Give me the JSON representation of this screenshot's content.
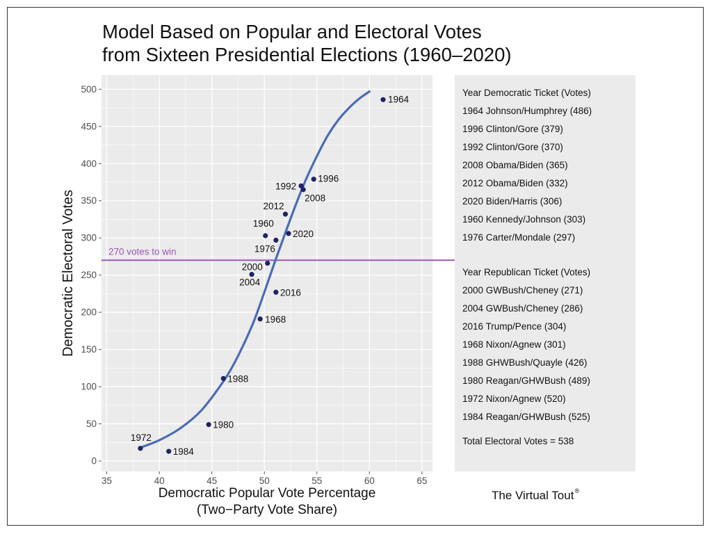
{
  "title_lines": [
    "Model Based on Popular and Electoral Votes",
    "from Sixteen Presidential Elections (1960–2020)"
  ],
  "colors": {
    "panel_bg": "#ebebeb",
    "grid": "#ffffff",
    "point": "#1f2266",
    "curve": "#4a6cb5",
    "threshold": "#9b59b6"
  },
  "chart_data": {
    "type": "scatter",
    "xlabel": "Democratic Popular Vote Percentage",
    "xlabel2": "(Two−Party Vote Share)",
    "ylabel": "Democratic Electoral Votes",
    "xlim": [
      34.5,
      66
    ],
    "ylim": [
      -14,
      519
    ],
    "xticks": [
      35,
      40,
      45,
      50,
      55,
      60,
      65
    ],
    "yticks": [
      0,
      50,
      100,
      150,
      200,
      250,
      300,
      350,
      400,
      450,
      500
    ],
    "grid": true,
    "points": [
      {
        "label": "1960",
        "x": 50.1,
        "y": 303
      },
      {
        "label": "1964",
        "x": 61.3,
        "y": 486
      },
      {
        "label": "1968",
        "x": 49.6,
        "y": 191
      },
      {
        "label": "1972",
        "x": 38.2,
        "y": 17
      },
      {
        "label": "1976",
        "x": 51.1,
        "y": 297
      },
      {
        "label": "1980",
        "x": 44.7,
        "y": 49
      },
      {
        "label": "1984",
        "x": 40.9,
        "y": 13
      },
      {
        "label": "1988",
        "x": 46.1,
        "y": 111
      },
      {
        "label": "1992",
        "x": 53.5,
        "y": 370
      },
      {
        "label": "1996",
        "x": 54.7,
        "y": 379
      },
      {
        "label": "2000",
        "x": 50.3,
        "y": 266
      },
      {
        "label": "2004",
        "x": 48.8,
        "y": 251
      },
      {
        "label": "2008",
        "x": 53.7,
        "y": 365
      },
      {
        "label": "2012",
        "x": 52.0,
        "y": 332
      },
      {
        "label": "2016",
        "x": 51.1,
        "y": 227
      },
      {
        "label": "2020",
        "x": 52.3,
        "y": 306
      }
    ],
    "fit_curve": [
      [
        38.2,
        18
      ],
      [
        40,
        28
      ],
      [
        42,
        44
      ],
      [
        44,
        68
      ],
      [
        46,
        105
      ],
      [
        47,
        128
      ],
      [
        48,
        156
      ],
      [
        49,
        188
      ],
      [
        50,
        227
      ],
      [
        51,
        268
      ],
      [
        52,
        307
      ],
      [
        53,
        345
      ],
      [
        54,
        380
      ],
      [
        55,
        410
      ],
      [
        56,
        437
      ],
      [
        57,
        458
      ],
      [
        58,
        474
      ],
      [
        59,
        487
      ],
      [
        60,
        497
      ]
    ],
    "threshold": {
      "y": 270,
      "label": "270 votes to win"
    }
  },
  "panel": {
    "dem_header": "Year  Democratic Ticket (Votes)",
    "dem_items": [
      "1964 Johnson/Humphrey (486)",
      "1996 Clinton/Gore (379)",
      "1992 Clinton/Gore (370)",
      "2008 Obama/Biden (365)",
      "2012 Obama/Biden (332)",
      "2020 Biden/Harris (306)",
      "1960 Kennedy/Johnson (303)",
      "1976 Carter/Mondale (297)"
    ],
    "rep_header": "Year  Republican Ticket (Votes)",
    "rep_items": [
      "2000 GWBush/Cheney (271)",
      "2004 GWBush/Cheney (286)",
      "2016 Trump/Pence (304)",
      "1968 Nixon/Agnew (301)",
      "1988 GHWBush/Quayle (426)",
      "1980 Reagan/GHWBush (489)",
      "1972 Nixon/Agnew (520)",
      "1984 Reagan/GHWBush (525)"
    ],
    "total": "Total Electoral Votes = 538"
  },
  "brand": {
    "name": "The Virtual Tout",
    "mark": "®"
  }
}
